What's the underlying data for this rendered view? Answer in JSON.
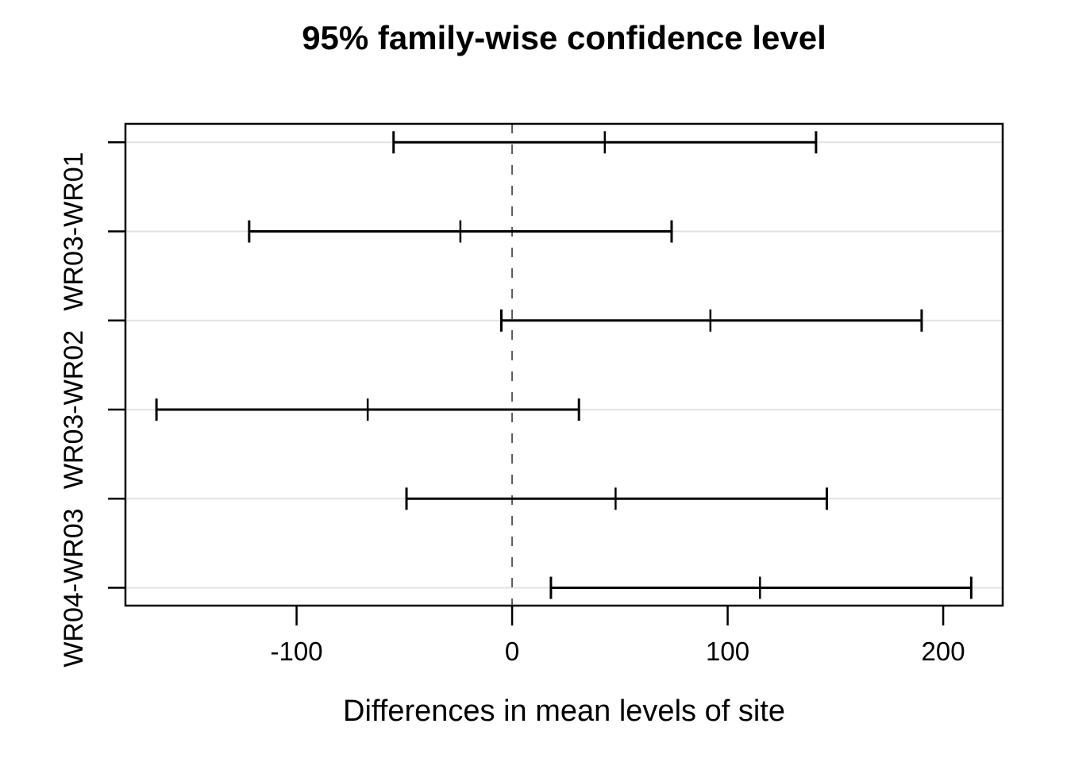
{
  "figure": {
    "background_color": "#ffffff"
  },
  "chart_data": {
    "type": "errorbar",
    "orientation": "horizontal",
    "title": "95% family-wise confidence level",
    "xlabel": "Differences in mean levels of site",
    "ylabel": "",
    "xlim": [
      -179.4,
      227.6
    ],
    "x_ticks": [
      -100,
      0,
      100,
      200
    ],
    "x_tick_labels": [
      "-100",
      "0",
      "100",
      "200"
    ],
    "zero_line": {
      "value": 0,
      "style": "dashed",
      "color": "#5a5a5a"
    },
    "grid": true,
    "grid_color": "#e2e2e2",
    "bar_color": "#000000",
    "axis_color": "#000000",
    "rows": [
      {
        "label": "",
        "lower": -55,
        "center": 43,
        "upper": 141
      },
      {
        "label": "WR03-WR01",
        "lower": -122,
        "center": -24,
        "upper": 74
      },
      {
        "label": "",
        "lower": -5,
        "center": 92,
        "upper": 190
      },
      {
        "label": "WR03-WR02",
        "lower": -165,
        "center": -67,
        "upper": 31
      },
      {
        "label": "",
        "lower": -49,
        "center": 48,
        "upper": 146
      },
      {
        "label": "WR04-WR03",
        "lower": 18,
        "center": 115,
        "upper": 213
      }
    ]
  }
}
